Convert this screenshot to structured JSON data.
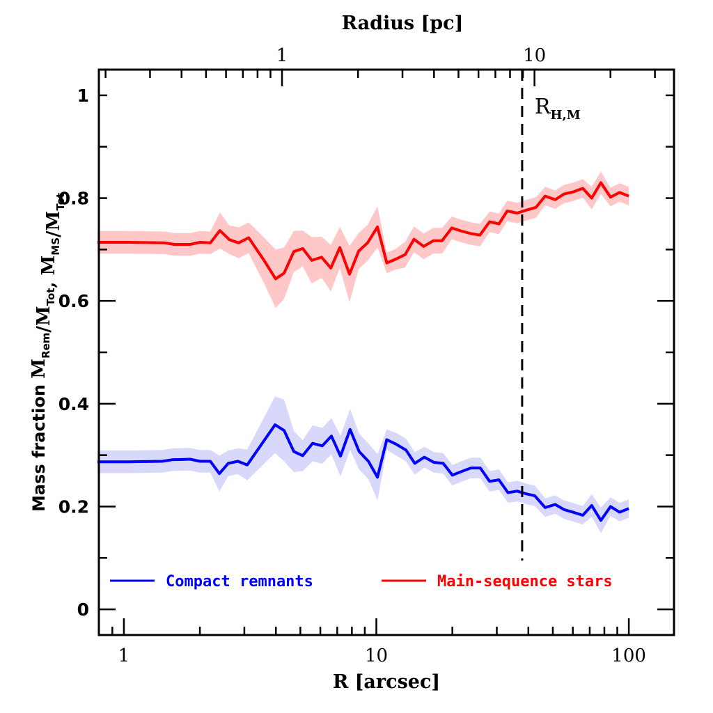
{
  "chart_data": {
    "type": "line",
    "title": "",
    "xlabel": "R [arcsec]",
    "ylabel_prefix": "Mass fraction",
    "ylabel_parts": [
      {
        "text": "M",
        "sub": "Rem"
      },
      {
        "text": "/M",
        "sub": "Tot"
      },
      {
        "text": ",  M",
        "sub": "MS"
      },
      {
        "text": "/M",
        "sub": "Tot"
      }
    ],
    "top_xlabel": "Radius [pc]",
    "xscale": "log",
    "xlim": [
      0.796,
      151
    ],
    "ylim": [
      -0.05,
      1.05
    ],
    "x_ticks": [
      1,
      10,
      100
    ],
    "x_tick_labels": [
      "1",
      "10",
      "100"
    ],
    "y_ticks": [
      0,
      0.2,
      0.4,
      0.6,
      0.8,
      1
    ],
    "y_tick_labels": [
      "0",
      "0.2",
      "0.4",
      "0.6",
      "0.8",
      "1"
    ],
    "top_axis": {
      "arcsec_per_pc": 4.23,
      "ticks_pc": [
        1,
        10
      ],
      "tick_labels": [
        "1",
        "10"
      ]
    },
    "grid": false,
    "annotations": [
      {
        "type": "vline",
        "x": 37.8,
        "style": "dashed",
        "label_main": "R",
        "label_sub": "H,M"
      }
    ],
    "legend": {
      "placement": "bottom",
      "entries": [
        {
          "label": "Compact remnants",
          "color": "#0000ff"
        },
        {
          "label": "Main-sequence stars",
          "color": "#ff0000"
        }
      ]
    },
    "series": [
      {
        "name": "Main-sequence stars",
        "color": "#ff0000",
        "band_color": "#ffc8c8",
        "x": [
          0.786,
          1.03,
          1.45,
          1.58,
          1.83,
          2.0,
          2.2,
          2.4,
          2.62,
          2.85,
          3.12,
          3.61,
          3.99,
          4.31,
          4.71,
          5.11,
          5.55,
          6.07,
          6.6,
          7.17,
          7.83,
          8.51,
          9.23,
          10.1,
          11.0,
          11.9,
          13.0,
          14.1,
          15.4,
          16.8,
          18.2,
          19.9,
          21.7,
          23.7,
          25.7,
          28.1,
          30.6,
          33.0,
          36.1,
          39.5,
          42.9,
          46.6,
          51.1,
          55.4,
          60.1,
          65.7,
          71.3,
          77.5,
          84.6,
          91.9,
          100
        ],
        "values": [
          0.714,
          0.714,
          0.713,
          0.71,
          0.71,
          0.714,
          0.713,
          0.737,
          0.719,
          0.713,
          0.723,
          0.677,
          0.643,
          0.654,
          0.696,
          0.702,
          0.679,
          0.685,
          0.664,
          0.704,
          0.652,
          0.697,
          0.713,
          0.744,
          0.674,
          0.681,
          0.69,
          0.72,
          0.706,
          0.717,
          0.717,
          0.742,
          0.736,
          0.731,
          0.728,
          0.754,
          0.75,
          0.775,
          0.771,
          0.777,
          0.782,
          0.804,
          0.797,
          0.808,
          0.812,
          0.819,
          0.8,
          0.83,
          0.802,
          0.811,
          0.804
        ],
        "errors": [
          0.022,
          0.022,
          0.022,
          0.022,
          0.022,
          0.022,
          0.022,
          0.035,
          0.028,
          0.03,
          0.03,
          0.045,
          0.057,
          0.05,
          0.04,
          0.035,
          0.045,
          0.04,
          0.045,
          0.04,
          0.055,
          0.035,
          0.035,
          0.04,
          0.02,
          0.02,
          0.025,
          0.025,
          0.025,
          0.025,
          0.025,
          0.022,
          0.022,
          0.022,
          0.022,
          0.02,
          0.02,
          0.02,
          0.02,
          0.02,
          0.02,
          0.018,
          0.018,
          0.018,
          0.018,
          0.018,
          0.022,
          0.022,
          0.018,
          0.018,
          0.018
        ]
      },
      {
        "name": "Compact remnants",
        "color": "#0000ff",
        "band_color": "#d8d8fb",
        "x": [
          0.786,
          1.03,
          1.42,
          1.55,
          1.83,
          2.0,
          2.2,
          2.39,
          2.59,
          2.83,
          3.08,
          3.97,
          4.31,
          4.71,
          5.11,
          5.59,
          6.11,
          6.64,
          7.21,
          7.87,
          8.55,
          9.3,
          10.1,
          11.0,
          12.0,
          13.1,
          14.2,
          15.5,
          16.9,
          18.4,
          20.0,
          21.7,
          23.7,
          25.8,
          28.1,
          30.6,
          33.2,
          36.1,
          39.0,
          42.4,
          46.6,
          51.1,
          55.4,
          60.1,
          65.7,
          71.3,
          77.5,
          84.6,
          91.9,
          100
        ],
        "values": [
          0.287,
          0.287,
          0.288,
          0.291,
          0.292,
          0.288,
          0.288,
          0.264,
          0.284,
          0.288,
          0.281,
          0.359,
          0.348,
          0.307,
          0.299,
          0.323,
          0.318,
          0.337,
          0.298,
          0.35,
          0.307,
          0.288,
          0.257,
          0.33,
          0.321,
          0.31,
          0.284,
          0.296,
          0.286,
          0.284,
          0.261,
          0.268,
          0.275,
          0.275,
          0.249,
          0.252,
          0.227,
          0.23,
          0.225,
          0.221,
          0.198,
          0.204,
          0.194,
          0.189,
          0.183,
          0.202,
          0.173,
          0.2,
          0.189,
          0.196
        ],
        "errors": [
          0.022,
          0.022,
          0.022,
          0.022,
          0.022,
          0.022,
          0.022,
          0.035,
          0.025,
          0.025,
          0.03,
          0.055,
          0.06,
          0.04,
          0.03,
          0.035,
          0.035,
          0.035,
          0.04,
          0.04,
          0.035,
          0.035,
          0.045,
          0.02,
          0.022,
          0.022,
          0.022,
          0.02,
          0.02,
          0.02,
          0.02,
          0.02,
          0.02,
          0.02,
          0.02,
          0.02,
          0.02,
          0.02,
          0.02,
          0.02,
          0.018,
          0.018,
          0.018,
          0.018,
          0.018,
          0.022,
          0.025,
          0.018,
          0.018,
          0.018
        ]
      }
    ]
  }
}
